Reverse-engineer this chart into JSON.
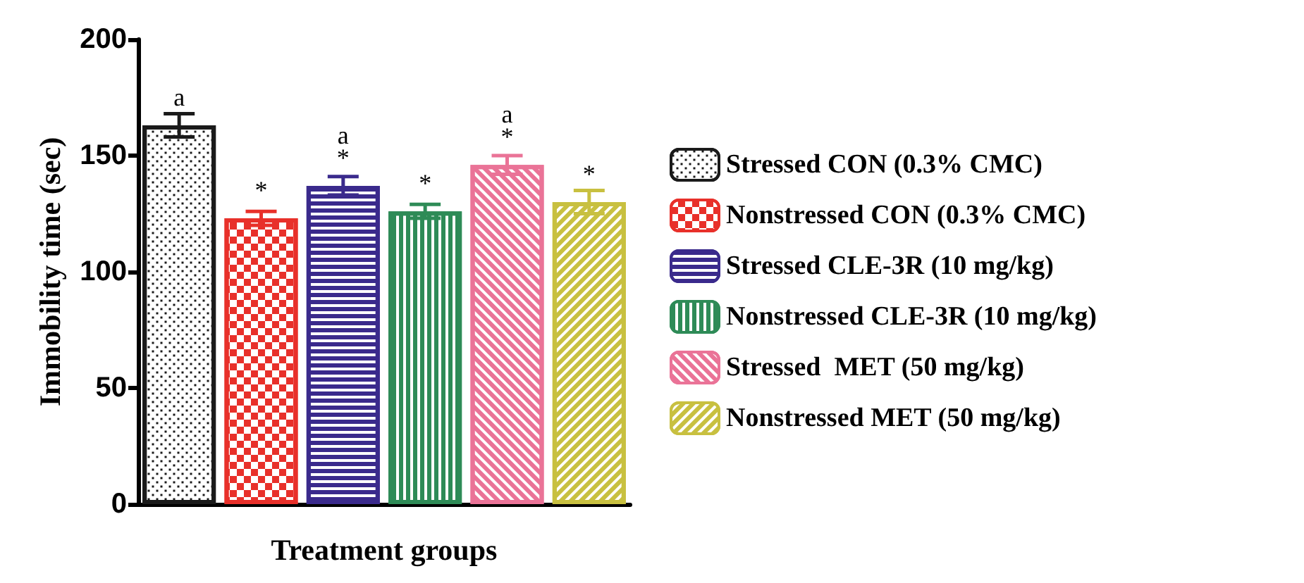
{
  "chart_data": {
    "type": "bar",
    "ylabel": "Immobility time (sec)",
    "xlabel": "Treatment groups",
    "categories": [
      null,
      null,
      null,
      null,
      null,
      null
    ],
    "series": [
      {
        "name": "Stressed CON (0.3% CMC)",
        "color": "#1a1a1a",
        "values": [
          163,
          null,
          null,
          null,
          null,
          null
        ],
        "errors": [
          5,
          null,
          null,
          null,
          null,
          null
        ],
        "value_labels": [
          "a",
          null,
          null,
          null,
          null,
          null
        ]
      },
      {
        "name": "Nonstressed CON (0.3% CMC)",
        "color": "#e8302a",
        "values": [
          null,
          123,
          null,
          null,
          null,
          null
        ],
        "errors": [
          null,
          3,
          null,
          null,
          null,
          null
        ],
        "value_labels": [
          null,
          "*",
          null,
          null,
          null,
          null
        ]
      },
      {
        "name": "Stressed CLE-3R (10 mg/kg)",
        "color": "#3a2a8c",
        "values": [
          null,
          null,
          137,
          null,
          null,
          null
        ],
        "errors": [
          null,
          null,
          4,
          null,
          null,
          null
        ],
        "value_labels": [
          null,
          null,
          "a\n*",
          null,
          null,
          null
        ]
      },
      {
        "name": "Nonstressed CLE-3R (10 mg/kg)",
        "color": "#2e8b57",
        "values": [
          null,
          null,
          null,
          126,
          null,
          null
        ],
        "errors": [
          null,
          null,
          null,
          3,
          null,
          null
        ],
        "value_labels": [
          null,
          null,
          null,
          "*",
          null,
          null
        ]
      },
      {
        "name": "Stressed  MET (50 mg/kg)",
        "color": "#ea7397",
        "values": [
          null,
          null,
          null,
          null,
          146,
          null
        ],
        "errors": [
          null,
          null,
          null,
          null,
          4,
          null
        ],
        "value_labels": [
          null,
          null,
          null,
          null,
          "a\n*",
          null
        ]
      },
      {
        "name": "Nonstressed MET (50 mg/kg)",
        "color": "#c8c040",
        "values": [
          null,
          null,
          null,
          null,
          null,
          130
        ],
        "errors": [
          null,
          null,
          null,
          null,
          null,
          5
        ],
        "value_labels": [
          null,
          null,
          null,
          null,
          null,
          "*"
        ]
      }
    ],
    "ylim": [
      0,
      200
    ],
    "yticks": [
      0,
      50,
      100,
      150,
      200
    ],
    "grid": false,
    "legend": "right"
  }
}
